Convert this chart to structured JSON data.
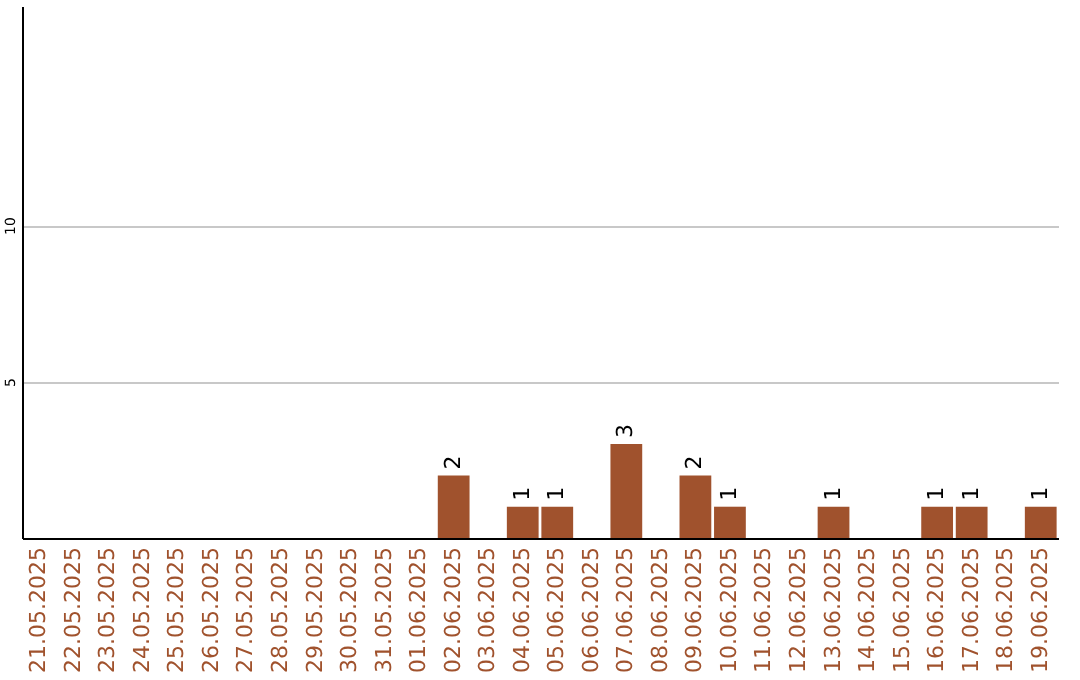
{
  "chart_data": {
    "type": "bar",
    "categories": [
      "21.05.2025",
      "22.05.2025",
      "23.05.2025",
      "24.05.2025",
      "25.05.2025",
      "26.05.2025",
      "27.05.2025",
      "28.05.2025",
      "29.05.2025",
      "30.05.2025",
      "31.05.2025",
      "01.06.2025",
      "02.06.2025",
      "03.06.2025",
      "04.06.2025",
      "05.06.2025",
      "06.06.2025",
      "07.06.2025",
      "08.06.2025",
      "09.06.2025",
      "10.06.2025",
      "11.06.2025",
      "12.06.2025",
      "13.06.2025",
      "14.06.2025",
      "15.06.2025",
      "16.06.2025",
      "17.06.2025",
      "18.06.2025",
      "19.06.2025"
    ],
    "values": [
      0,
      0,
      0,
      0,
      0,
      0,
      0,
      0,
      0,
      0,
      0,
      0,
      2,
      0,
      1,
      1,
      0,
      3,
      0,
      2,
      1,
      0,
      0,
      1,
      0,
      0,
      1,
      1,
      0,
      1
    ],
    "value_labels": [
      null,
      null,
      null,
      null,
      null,
      null,
      null,
      null,
      null,
      null,
      null,
      null,
      "2",
      null,
      "1",
      "1",
      null,
      "3",
      null,
      "2",
      "1",
      null,
      null,
      "1",
      null,
      null,
      "1",
      "1",
      null,
      "1"
    ],
    "color": "#a0522d",
    "ylim": [
      0,
      17
    ],
    "yticks": [
      5,
      10
    ],
    "grid": "y"
  }
}
